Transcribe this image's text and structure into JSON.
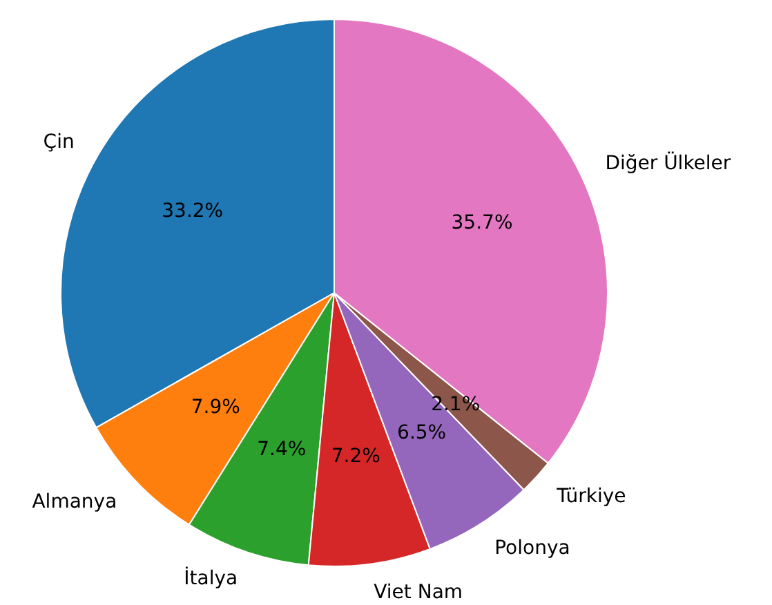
{
  "chart_data": {
    "type": "pie",
    "categories": [
      "Çin",
      "Almanya",
      "İtalya",
      "Viet Nam",
      "Polonya",
      "Türkiye",
      "Diğer Ülkeler"
    ],
    "values": [
      33.2,
      7.9,
      7.4,
      7.2,
      6.5,
      2.1,
      35.7
    ],
    "colors": [
      "#1f77b4",
      "#ff7f0e",
      "#2ca02c",
      "#d62728",
      "#9467bd",
      "#8c564b",
      "#e377c2"
    ],
    "value_labels": [
      "33.2%",
      "7.9%",
      "7.4%",
      "7.2%",
      "6.5%",
      "2.1%",
      "35.7%"
    ]
  }
}
